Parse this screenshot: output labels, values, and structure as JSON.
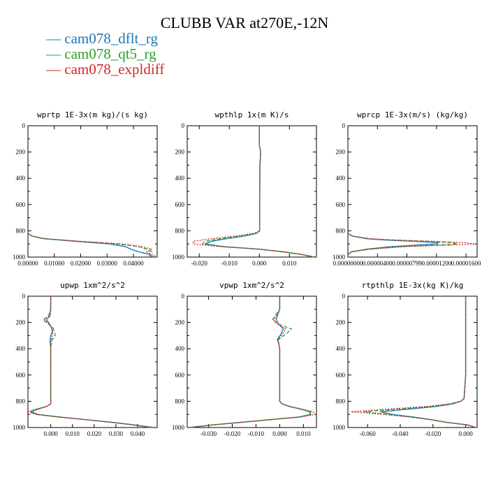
{
  "figure_title": "CLUBB VAR at270E,-12N",
  "legend": [
    {
      "label": "cam078_dflt_rg",
      "color": "#1f77b4",
      "dash": "solid"
    },
    {
      "label": "cam078_qt5_rg",
      "color": "#2ca02c",
      "dash": "dashed"
    },
    {
      "label": "cam078_expldiff",
      "color": "#d62728",
      "dash": "dotted"
    }
  ],
  "chart_data": [
    {
      "type": "line",
      "title": "wprtp  1E-3x(m kg)/(s kg)",
      "xlim": [
        0,
        0.049
      ],
      "ylim": [
        1000,
        0
      ],
      "xticks": [
        "0.00000",
        "0.01000",
        "0.02000",
        "0.03000",
        "0.04000"
      ],
      "xtick_values": [
        0,
        0.01,
        0.02,
        0.03,
        0.04
      ],
      "yticks": [
        "0",
        "200",
        "400",
        "600",
        "800",
        "1000"
      ],
      "ytick_values": [
        0,
        200,
        400,
        600,
        800,
        1000
      ],
      "y": [
        820,
        840,
        860,
        880,
        900,
        920,
        940,
        960,
        980,
        1000
      ],
      "series": [
        {
          "name": "cam078_dflt_rg",
          "values": [
            0,
            0.0015,
            0.006,
            0.018,
            0.031,
            0.037,
            0.039,
            0.042,
            0.046,
            0.0475
          ]
        },
        {
          "name": "cam078_qt5_rg",
          "values": [
            0,
            0.0015,
            0.006,
            0.019,
            0.034,
            0.042,
            0.045,
            0.047,
            0.046,
            0.0465
          ]
        },
        {
          "name": "cam078_expldiff",
          "values": [
            0,
            0.0015,
            0.007,
            0.02,
            0.036,
            0.043,
            0.047,
            0.045,
            0.047,
            0.049
          ]
        }
      ]
    },
    {
      "type": "line",
      "title": "wpthlp  1x(m K)/s",
      "xlim": [
        -0.024,
        0.019
      ],
      "ylim": [
        1000,
        0
      ],
      "xticks": [
        "-0.020",
        "-0.010",
        "0.000",
        "0.010"
      ],
      "xtick_values": [
        -0.02,
        -0.01,
        0,
        0.01
      ],
      "yticks": [
        "0",
        "200",
        "400",
        "600",
        "800",
        "1000"
      ],
      "ytick_values": [
        0,
        200,
        400,
        600,
        800,
        1000
      ],
      "y": [
        0,
        150,
        180,
        220,
        300,
        600,
        800,
        820,
        840,
        860,
        880,
        900,
        920,
        940,
        960,
        980,
        1000
      ],
      "series": [
        {
          "name": "cam078_dflt_rg",
          "values": [
            0,
            0,
            0.0003,
            0.0004,
            0.0002,
            0.0001,
            0.0001,
            -0.001,
            -0.005,
            -0.011,
            -0.016,
            -0.018,
            -0.012,
            0.0,
            0.008,
            0.014,
            0.018
          ]
        },
        {
          "name": "cam078_qt5_rg",
          "values": [
            0,
            0,
            0.0003,
            0.0004,
            0.0002,
            0.0001,
            0.0001,
            -0.001,
            -0.006,
            -0.013,
            -0.018,
            -0.019,
            -0.012,
            0.0,
            0.008,
            0.014,
            0.018
          ]
        },
        {
          "name": "cam078_expldiff",
          "values": [
            0,
            0,
            0.0003,
            0.0004,
            0.0002,
            0.0001,
            0.0001,
            -0.002,
            -0.008,
            -0.016,
            -0.022,
            -0.022,
            -0.013,
            0.0,
            0.008,
            0.014,
            0.019
          ]
        }
      ]
    },
    {
      "type": "line",
      "title": "wprcp  1E-3x(m/s) (kg/kg)",
      "xlim": [
        0,
        1.75e-05
      ],
      "ylim": [
        1000,
        0
      ],
      "xticks": [
        "0.00000000",
        "0.00000400",
        "0.00000799",
        "0.00001200",
        "0.00001600"
      ],
      "xtick_values": [
        0,
        4e-06,
        7.99e-06,
        1.2e-05,
        1.6e-05
      ],
      "yticks": [
        "0",
        "200",
        "400",
        "600",
        "800",
        "1000"
      ],
      "ytick_values": [
        0,
        200,
        400,
        600,
        800,
        1000
      ],
      "y": [
        820,
        840,
        860,
        870,
        880,
        890,
        900,
        910,
        920,
        940,
        960,
        980,
        1000
      ],
      "series": [
        {
          "name": "cam078_dflt_rg",
          "values": [
            0,
            6e-07,
            2.5e-06,
            5e-06,
            9e-06,
            1.23e-05,
            1.2e-05,
            9e-06,
            6e-06,
            2.5e-06,
            5e-07,
            0,
            0
          ]
        },
        {
          "name": "cam078_qt5_rg",
          "values": [
            0,
            6e-07,
            2.8e-06,
            5.8e-06,
            1.05e-05,
            1.42e-05,
            1.48e-05,
            1.15e-05,
            7e-06,
            2.8e-06,
            5e-07,
            0,
            0
          ]
        },
        {
          "name": "cam078_expldiff",
          "values": [
            0,
            6e-07,
            3e-06,
            6.3e-06,
            1.15e-05,
            1.58e-05,
            1.72e-05,
            1.3e-05,
            7.8e-06,
            3e-06,
            5e-07,
            0,
            0
          ]
        }
      ]
    },
    {
      "type": "line",
      "title": "upwp  1xm^2/s^2",
      "xlim": [
        -0.0105,
        0.049
      ],
      "ylim": [
        1000,
        0
      ],
      "xticks": [
        "0.000",
        "0.010",
        "0.020",
        "0.030",
        "0.040"
      ],
      "xtick_values": [
        0,
        0.01,
        0.02,
        0.03,
        0.04
      ],
      "yticks": [
        "0",
        "200",
        "400",
        "600",
        "800",
        "1000"
      ],
      "ytick_values": [
        0,
        200,
        400,
        600,
        800,
        1000
      ],
      "y": [
        0,
        100,
        150,
        180,
        200,
        240,
        270,
        300,
        340,
        400,
        600,
        820,
        840,
        860,
        880,
        900,
        920,
        940,
        960,
        980,
        1000
      ],
      "series": [
        {
          "name": "cam078_dflt_rg",
          "values": [
            0,
            0,
            -0.0003,
            -0.002,
            -0.001,
            0.0003,
            0.0008,
            0,
            -0.0003,
            0,
            0,
            0,
            -0.002,
            -0.006,
            -0.009,
            -0.006,
            0.004,
            0.016,
            0.028,
            0.038,
            0.046
          ]
        },
        {
          "name": "cam078_qt5_rg",
          "values": [
            0,
            0,
            -0.001,
            -0.0035,
            -0.002,
            0.001,
            0.0017,
            0.002,
            0.0003,
            0,
            0,
            0,
            -0.002,
            -0.006,
            -0.0095,
            -0.007,
            0.004,
            0.016,
            0.028,
            0.038,
            0.047
          ]
        },
        {
          "name": "cam078_expldiff",
          "values": [
            0,
            0,
            -0.001,
            -0.003,
            -0.0015,
            0.0006,
            0.0009,
            0.0007,
            0.0001,
            0,
            0,
            0,
            -0.002,
            -0.007,
            -0.0103,
            -0.007,
            0.004,
            0.016,
            0.028,
            0.039,
            0.048
          ]
        }
      ]
    },
    {
      "type": "line",
      "title": "vpwp  1xm^2/s^2",
      "xlim": [
        -0.039,
        0.0155
      ],
      "ylim": [
        1000,
        0
      ],
      "xticks": [
        "-0.030",
        "-0.020",
        "-0.010",
        "0.000",
        "0.010"
      ],
      "xtick_values": [
        -0.03,
        -0.02,
        -0.01,
        0,
        0.01
      ],
      "yticks": [
        "0",
        "200",
        "400",
        "600",
        "800",
        "1000"
      ],
      "ytick_values": [
        0,
        200,
        400,
        600,
        800,
        1000
      ],
      "y": [
        0,
        100,
        150,
        180,
        210,
        250,
        290,
        330,
        370,
        400,
        600,
        800,
        820,
        840,
        860,
        880,
        900,
        920,
        940,
        960,
        980,
        1000
      ],
      "series": [
        {
          "name": "cam078_dflt_rg",
          "values": [
            0,
            0,
            -0.001,
            -0.0015,
            -0.0005,
            0.0015,
            0.0005,
            -0.001,
            -0.0003,
            0,
            0,
            0,
            0.001,
            0.004,
            0.009,
            0.0125,
            0.013,
            0.008,
            -0.004,
            -0.016,
            -0.028,
            -0.038
          ]
        },
        {
          "name": "cam078_qt5_rg",
          "values": [
            0,
            0,
            -0.002,
            -0.003,
            -0.001,
            0.005,
            0.0025,
            -0.0005,
            -0.0003,
            0,
            0,
            0,
            0.001,
            0.004,
            0.009,
            0.013,
            0.0135,
            0.008,
            -0.004,
            -0.016,
            -0.028,
            -0.038
          ]
        },
        {
          "name": "cam078_expldiff",
          "values": [
            0,
            0,
            -0.0015,
            -0.0025,
            -0.001,
            0.0025,
            0.0012,
            -0.0008,
            -0.0003,
            0,
            0,
            0,
            0.001,
            0.0045,
            0.0095,
            0.014,
            0.015,
            0.009,
            -0.004,
            -0.016,
            -0.028,
            -0.039
          ]
        }
      ]
    },
    {
      "type": "line",
      "title": "rtpthlp  1E-3x(kg K)/kg",
      "xlim": [
        -0.072,
        0.007
      ],
      "ylim": [
        1000,
        0
      ],
      "xticks": [
        "-0.060",
        "-0.040",
        "-0.020",
        "0.000"
      ],
      "xtick_values": [
        -0.06,
        -0.04,
        -0.02,
        0
      ],
      "yticks": [
        "0",
        "200",
        "400",
        "600",
        "800",
        "1000"
      ],
      "ytick_values": [
        0,
        200,
        400,
        600,
        800,
        1000
      ],
      "y": [
        0,
        600,
        780,
        800,
        820,
        840,
        860,
        880,
        900,
        920,
        940,
        960,
        980,
        1000
      ],
      "series": [
        {
          "name": "cam078_dflt_rg",
          "values": [
            0,
            0,
            -0.001,
            -0.003,
            -0.008,
            -0.018,
            -0.035,
            -0.052,
            -0.045,
            -0.032,
            -0.021,
            -0.012,
            0.001,
            0.006
          ]
        },
        {
          "name": "cam078_qt5_rg",
          "values": [
            0,
            0,
            -0.001,
            -0.003,
            -0.009,
            -0.021,
            -0.042,
            -0.062,
            -0.048,
            -0.033,
            -0.021,
            -0.012,
            0.001,
            0.006
          ]
        },
        {
          "name": "cam078_expldiff",
          "values": [
            0,
            0,
            -0.001,
            -0.003,
            -0.01,
            -0.024,
            -0.048,
            -0.07,
            -0.05,
            -0.034,
            -0.022,
            -0.012,
            0.001,
            0.007
          ]
        }
      ]
    }
  ]
}
